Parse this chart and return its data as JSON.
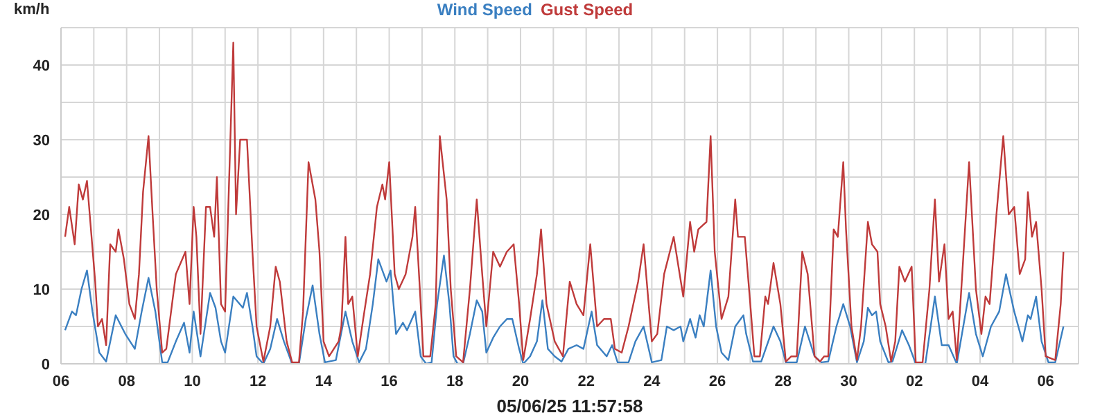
{
  "chart_data": {
    "type": "line",
    "ylabel": "km/h",
    "xlabel": "05/06/25 11:57:58",
    "legend": "top",
    "grid": true,
    "xlim": [
      "--04-06",
      "--05-07"
    ],
    "xticks": [
      {
        "value": "--04-06",
        "label": "06"
      },
      {
        "value": "--04-07",
        "label": null
      },
      {
        "value": "--04-08",
        "label": "08"
      },
      {
        "value": "--04-09",
        "label": null
      },
      {
        "value": "--04-10",
        "label": "10"
      },
      {
        "value": "--04-11",
        "label": null
      },
      {
        "value": "--04-12",
        "label": "12"
      },
      {
        "value": "--04-13",
        "label": null
      },
      {
        "value": "--04-14",
        "label": "14"
      },
      {
        "value": "--04-15",
        "label": null
      },
      {
        "value": "--04-16",
        "label": "16"
      },
      {
        "value": "--04-17",
        "label": null
      },
      {
        "value": "--04-18",
        "label": "18"
      },
      {
        "value": "--04-19",
        "label": null
      },
      {
        "value": "--04-20",
        "label": "20"
      },
      {
        "value": "--04-21",
        "label": null
      },
      {
        "value": "--04-22",
        "label": "22"
      },
      {
        "value": "--04-23",
        "label": null
      },
      {
        "value": "--04-24",
        "label": "24"
      },
      {
        "value": "--04-25",
        "label": null
      },
      {
        "value": "--04-26",
        "label": "26"
      },
      {
        "value": "--04-27",
        "label": null
      },
      {
        "value": "--04-28",
        "label": "28"
      },
      {
        "value": "--04-29",
        "label": null
      },
      {
        "value": "--04-30",
        "label": "30"
      },
      {
        "value": "--05-01",
        "label": null
      },
      {
        "value": "--05-02",
        "label": "02"
      },
      {
        "value": "--05-03",
        "label": null
      },
      {
        "value": "--05-04",
        "label": "04"
      },
      {
        "value": "--05-05",
        "label": null
      },
      {
        "value": "--05-06",
        "label": "06"
      }
    ],
    "ylim": [
      0,
      45
    ],
    "yticks": [
      0,
      {
        "value": 5,
        "label": null
      },
      10,
      {
        "value": 15,
        "label": null
      },
      20,
      {
        "value": 25,
        "label": null
      },
      30,
      {
        "value": 35,
        "label": null
      },
      40,
      {
        "value": 45,
        "label": null
      }
    ],
    "series": [
      {
        "name": "Wind Speed",
        "color": "#3a7fc1",
        "x": [
          "--04-06T03:00",
          "--04-06T08:00",
          "--04-06T11:00",
          "--04-06T15:00",
          "--04-06T19:00",
          "--04-06T23:00",
          "--04-07T04:00",
          "--04-07T09:00",
          "--04-07T16:00",
          "--04-07T23:00",
          "--04-08T06:00",
          "--04-08T11:00",
          "--04-08T16:00",
          "--04-08T21:00",
          "--04-09T02:00",
          "--04-09T06:00",
          "--04-09T12:00",
          "--04-09T18:00",
          "--04-09T22:00",
          "--04-10T01:00",
          "--04-10T06:00",
          "--04-10T13:00",
          "--04-10T17:00",
          "--04-10T21:00",
          "--04-11T00:00",
          "--04-11T06:00",
          "--04-11T13:00",
          "--04-11T16:00",
          "--04-11T20:00",
          "--04-11T23:00",
          "--04-12T04:00",
          "--04-12T09:00",
          "--04-12T14:00",
          "--04-12T19:00",
          "--04-13T01:00",
          "--04-13T06:00",
          "--04-13T11:00",
          "--04-13T16:00",
          "--04-13T21:00",
          "--04-14T01:00",
          "--04-14T09:00",
          "--04-14T16:00",
          "--04-14T21:00",
          "--04-15T02:00",
          "--04-15T07:00",
          "--04-15T12:00",
          "--04-15T16:00",
          "--04-15T22:00",
          "--04-16T01:00",
          "--04-16T05:00",
          "--04-16T10:00",
          "--04-16T13:00",
          "--04-16T19:00",
          "--04-16T23:00",
          "--04-17T03:00",
          "--04-17T07:00",
          "--04-17T11:00",
          "--04-17T16:00",
          "--04-17T20:00",
          "--04-17T23:00",
          "--04-18T02:00",
          "--04-18T06:00",
          "--04-18T11:00",
          "--04-18T16:00",
          "--04-18T20:00",
          "--04-18T23:00",
          "--04-19T04:00",
          "--04-19T09:00",
          "--04-19T14:00",
          "--04-19T18:00",
          "--04-19T23:00",
          "--04-20T02:00",
          "--04-20T07:00",
          "--04-20T12:00",
          "--04-20T16:00",
          "--04-20T20:00",
          "--04-21T01:00",
          "--04-21T06:00",
          "--04-21T11:00",
          "--04-21T17:00",
          "--04-21T22:00",
          "--04-22T04:00",
          "--04-22T08:00",
          "--04-22T15:00",
          "--04-22T19:00",
          "--04-22T23:00",
          "--04-23T07:00",
          "--04-23T12:00",
          "--04-23T18:00",
          "--04-24T00:00",
          "--04-24T07:00",
          "--04-24T11:00",
          "--04-24T16:00",
          "--04-24T21:00",
          "--04-24T23:00",
          "--04-25T04:00",
          "--04-25T08:00",
          "--04-25T11:00",
          "--04-25T14:00",
          "--04-25T19:00",
          "--04-25T23:00",
          "--04-26T03:00",
          "--04-26T08:00",
          "--04-26T13:00",
          "--04-26T19:00",
          "--04-26T21:00",
          "--04-27T02:00",
          "--04-27T08:00",
          "--04-27T17:00",
          "--04-27T22:00",
          "--04-28T02:00",
          "--04-28T10:00",
          "--04-28T16:00",
          "--04-28T23:00",
          "--04-29T04:00",
          "--04-29T09:00",
          "--04-29T15:00",
          "--04-29T20:00",
          "--04-30T01:00",
          "--04-30T06:00",
          "--04-30T11:00",
          "--04-30T14:00",
          "--04-30T17:00",
          "--04-30T20:00",
          "--04-30T23:00",
          "--05-01T05:00",
          "--05-01T08:00",
          "--05-01T15:00",
          "--05-01T20:00",
          "--05-02T01:00",
          "--05-02T08:00",
          "--05-02T15:00",
          "--05-02T20:00",
          "--05-03T01:00",
          "--05-03T07:00",
          "--05-03T16:00",
          "--05-03T21:00",
          "--05-04T02:00",
          "--05-04T08:00",
          "--05-04T14:00",
          "--05-04T19:00",
          "--05-05T01:00",
          "--05-05T07:00",
          "--05-05T11:00",
          "--05-05T13:00",
          "--05-05T17:00",
          "--05-05T21:00",
          "--05-06T02:00",
          "--05-06T07:00",
          "--05-06T13:00"
        ],
        "values": [
          4.5,
          7,
          6.5,
          10,
          12.5,
          7,
          1.5,
          0.3,
          6.5,
          4,
          2,
          7,
          11.5,
          7,
          0.2,
          0.2,
          3,
          5.5,
          1.5,
          7,
          1,
          9.5,
          7.5,
          3,
          1.5,
          9,
          7.5,
          9.5,
          5,
          1,
          0,
          2,
          6,
          3,
          0,
          0,
          6,
          10.5,
          4,
          0.2,
          0.5,
          7,
          3,
          0.2,
          2,
          8,
          14,
          11,
          12.5,
          4,
          5.5,
          4.5,
          7,
          1,
          0,
          0.2,
          8,
          14.5,
          8,
          1,
          0,
          0,
          4,
          8.5,
          7,
          1.5,
          3.5,
          5,
          6,
          6,
          2,
          0,
          1,
          3,
          8.5,
          2,
          1,
          0.3,
          2,
          2.5,
          2,
          7,
          2.5,
          1,
          2.5,
          0.2,
          0.2,
          3,
          5,
          0.2,
          0.5,
          5,
          4.5,
          5,
          3,
          6,
          3.5,
          6.5,
          5,
          12.5,
          5,
          1.5,
          0.5,
          5,
          6.5,
          4,
          0.3,
          0.3,
          5,
          3,
          0.2,
          0.2,
          5,
          1,
          0.2,
          0.3,
          5,
          8,
          5,
          0.2,
          3,
          7.5,
          6.5,
          7,
          3,
          0.2,
          0.3,
          4.5,
          2.5,
          0,
          0,
          9,
          2.5,
          2.5,
          0,
          9.5,
          4,
          1,
          5,
          7,
          12,
          7,
          3,
          6.5,
          6,
          9,
          3,
          0.2,
          0.2,
          5
        ]
      },
      {
        "name": "Gust Speed",
        "color": "#bf3a3a",
        "x": [
          "--04-06T03:00",
          "--04-06T06:00",
          "--04-06T10:00",
          "--04-06T13:00",
          "--04-06T16:00",
          "--04-06T19:00",
          "--04-06T21:00",
          "--04-07T01:00",
          "--04-07T03:00",
          "--04-07T06:00",
          "--04-07T09:00",
          "--04-07T12:00",
          "--04-07T16:00",
          "--04-07T18:00",
          "--04-07T22:00",
          "--04-08T02:00",
          "--04-08T06:00",
          "--04-08T09:00",
          "--04-08T12:00",
          "--04-08T16:00",
          "--04-08T19:00",
          "--04-08T22:00",
          "--04-09T02:00",
          "--04-09T05:00",
          "--04-09T12:00",
          "--04-09T19:00",
          "--04-09T22:00",
          "--04-10T01:00",
          "--04-10T03:00",
          "--04-10T06:00",
          "--04-10T10:00",
          "--04-10T13:00",
          "--04-10T16:00",
          "--04-10T18:00",
          "--04-10T21:00",
          "--04-11T00:00",
          "--04-11T06:00",
          "--04-11T08:00",
          "--04-11T11:00",
          "--04-11T16:00",
          "--04-11T20:00",
          "--04-11T23:00",
          "--04-12T04:00",
          "--04-12T09:00",
          "--04-12T13:00",
          "--04-12T16:00",
          "--04-12T21:00",
          "--04-13T01:00",
          "--04-13T06:00",
          "--04-13T09:00",
          "--04-13T13:00",
          "--04-13T18:00",
          "--04-13T21:00",
          "--04-14T00:00",
          "--04-14T04:00",
          "--04-14T11:00",
          "--04-14T13:00",
          "--04-14T16:00",
          "--04-14T18:00",
          "--04-14T21:00",
          "--04-15T01:00",
          "--04-15T05:00",
          "--04-15T10:00",
          "--04-15T15:00",
          "--04-15T19:00",
          "--04-15T21:00",
          "--04-16T00:00",
          "--04-16T04:00",
          "--04-16T07:00",
          "--04-16T12:00",
          "--04-16T17:00",
          "--04-16T19:00",
          "--04-16T23:00",
          "--04-17T01:00",
          "--04-17T06:00",
          "--04-17T10:00",
          "--04-17T13:00",
          "--04-17T18:00",
          "--04-17T21:00",
          "--04-18T01:00",
          "--04-18T06:00",
          "--04-18T11:00",
          "--04-18T16:00",
          "--04-18T20:00",
          "--04-18T23:00",
          "--04-19T04:00",
          "--04-19T09:00",
          "--04-19T14:00",
          "--04-19T19:00",
          "--04-19T23:00",
          "--04-20T02:00",
          "--04-20T07:00",
          "--04-20T12:00",
          "--04-20T15:00",
          "--04-20T19:00",
          "--04-21T01:00",
          "--04-21T07:00",
          "--04-21T12:00",
          "--04-21T17:00",
          "--04-21T22:00",
          "--04-22T03:00",
          "--04-22T08:00",
          "--04-22T13:00",
          "--04-22T18:00",
          "--04-22T21:00",
          "--04-23T02:00",
          "--04-23T07:00",
          "--04-23T14:00",
          "--04-23T18:00",
          "--04-24T00:00",
          "--04-24T04:00",
          "--04-24T09:00",
          "--04-24T16:00",
          "--04-24T23:00",
          "--04-25T04:00",
          "--04-25T07:00",
          "--04-25T10:00",
          "--04-25T16:00",
          "--04-25T19:00",
          "--04-25T22:00",
          "--04-26T03:00",
          "--04-26T08:00",
          "--04-26T13:00",
          "--04-26T15:00",
          "--04-26T20:00",
          "--04-27T00:00",
          "--04-27T03:00",
          "--04-27T07:00",
          "--04-27T11:00",
          "--04-27T13:00",
          "--04-27T17:00",
          "--04-27T22:00",
          "--04-28T02:00",
          "--04-28T06:00",
          "--04-28T10:00",
          "--04-28T14:00",
          "--04-28T18:00",
          "--04-28T23:00",
          "--04-29T03:00",
          "--04-29T06:00",
          "--04-29T09:00",
          "--04-29T13:00",
          "--04-29T16:00",
          "--04-29T20:00",
          "--04-29T22:00",
          "--04-30T02:00",
          "--04-30T06:00",
          "--04-30T09:00",
          "--04-30T14:00",
          "--04-30T17:00",
          "--04-30T21:00",
          "--04-30T23:00",
          "--05-01T03:00",
          "--05-01T07:00",
          "--05-01T10:00",
          "--05-01T13:00",
          "--05-01T17:00",
          "--05-01T22:00",
          "--05-02T01:00",
          "--05-02T06:00",
          "--05-02T11:00",
          "--05-02T15:00",
          "--05-02T18:00",
          "--05-02T22:00",
          "--05-03T01:00",
          "--05-03T04:00",
          "--05-03T07:00",
          "--05-03T11:00",
          "--05-03T16:00",
          "--05-03T21:00",
          "--05-04T01:00",
          "--05-04T04:00",
          "--05-04T07:00",
          "--05-04T12:00",
          "--05-04T17:00",
          "--05-04T21:00",
          "--05-05T01:00",
          "--05-05T05:00",
          "--05-05T09:00",
          "--05-05T11:00",
          "--05-05T14:00",
          "--05-05T17:00",
          "--05-05T21:00",
          "--05-06T00:00",
          "--05-06T07:00",
          "--05-06T11:00",
          "--05-06T13:00"
        ],
        "values": [
          17,
          21,
          16,
          24,
          22,
          24.5,
          20,
          11,
          5,
          6,
          2.5,
          16,
          15,
          18,
          14,
          8,
          6,
          12,
          23,
          30.5,
          20,
          10,
          1.5,
          2,
          12,
          15,
          8,
          21,
          17,
          4,
          21,
          21,
          17,
          25,
          8,
          7,
          43,
          20,
          30,
          30,
          15,
          5,
          0.3,
          5,
          13,
          11,
          3,
          0.2,
          0.2,
          7,
          27,
          22,
          15,
          3,
          1,
          3,
          5,
          17,
          8,
          9,
          1,
          6,
          12,
          21,
          24,
          22,
          27,
          12,
          10,
          12,
          17,
          21,
          8,
          1,
          1,
          8,
          30.5,
          22,
          10,
          1,
          0.2,
          10,
          22,
          12,
          5,
          15,
          13,
          15,
          16,
          8,
          0.5,
          6,
          12,
          18,
          8,
          3,
          1,
          11,
          8,
          6.5,
          16,
          5,
          6,
          6,
          2,
          1.5,
          5,
          11,
          16,
          3,
          4,
          12,
          17,
          9,
          19,
          15,
          18,
          19,
          30.5,
          15,
          6,
          9,
          22,
          17,
          17,
          8,
          1,
          1,
          9,
          8,
          13.5,
          8,
          0.3,
          1,
          1,
          15,
          12,
          1,
          0.3,
          1,
          1,
          18,
          17,
          27,
          18,
          5,
          0.5,
          5,
          19,
          16,
          15,
          8,
          5,
          0.3,
          3,
          13,
          11,
          13,
          0.2,
          0.2,
          10,
          22,
          11,
          16,
          6,
          7,
          0.5,
          12,
          27,
          10,
          4,
          9,
          8,
          20,
          30.5,
          20,
          21,
          12,
          14,
          23,
          17,
          19,
          10,
          1,
          0.5,
          8,
          15
        ]
      }
    ]
  }
}
